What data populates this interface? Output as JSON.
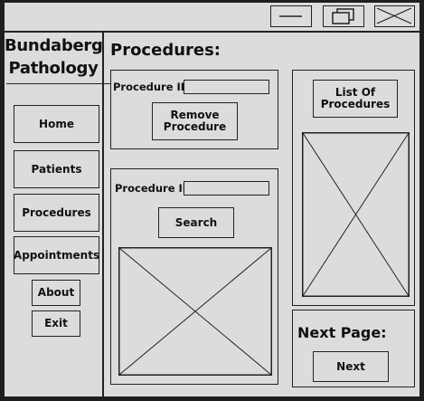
{
  "window": {
    "minimize_icon": "minimize-icon",
    "restore_icon": "restore-icon",
    "close_icon": "close-icon"
  },
  "sidebar": {
    "logo_line1": "Bundaberg",
    "logo_line2": "Pathology",
    "items": [
      {
        "label": "Home"
      },
      {
        "label": "Patients"
      },
      {
        "label": "Procedures"
      },
      {
        "label": "Appointments"
      }
    ],
    "about_label": "About",
    "exit_label": "Exit"
  },
  "main": {
    "title": "Procedures:",
    "remove_panel": {
      "id_label": "Procedure ID:",
      "id_value": "",
      "button_label": "Remove Procedure"
    },
    "search_panel": {
      "id_label": "Procedure ID:",
      "id_value": "",
      "button_label": "Search"
    },
    "list_panel": {
      "button_label": "List Of Procedures"
    },
    "next_panel": {
      "heading": "Next Page:",
      "button_label": "Next"
    }
  }
}
